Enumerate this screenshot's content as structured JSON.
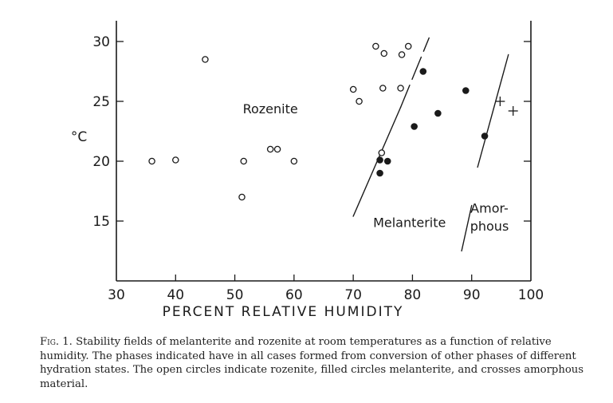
{
  "chart_data": {
    "type": "scatter",
    "title": "",
    "xlabel": "PERCENT RELATIVE HUMIDITY",
    "ylabel": "°C",
    "xlim": [
      30,
      100
    ],
    "ylim": [
      10,
      32
    ],
    "x_ticks": [
      30,
      40,
      50,
      60,
      70,
      80,
      90,
      100
    ],
    "y_ticks": [
      15,
      20,
      25,
      30
    ],
    "grid": false,
    "series": [
      {
        "marker": "open-circle",
        "points": [
          [
            36,
            20
          ],
          [
            40,
            20.1
          ],
          [
            45,
            28.5
          ],
          [
            51.2,
            17
          ],
          [
            51.5,
            20
          ],
          [
            56,
            21
          ],
          [
            57.2,
            21
          ],
          [
            60,
            20
          ],
          [
            70,
            26
          ],
          [
            71,
            25
          ],
          [
            73.8,
            29.6
          ],
          [
            74.8,
            20.7
          ],
          [
            75,
            26.1
          ],
          [
            75.2,
            29
          ],
          [
            78,
            26.1
          ],
          [
            78.2,
            28.9
          ],
          [
            79.3,
            29.6
          ]
        ]
      },
      {
        "marker": "filled-circle",
        "points": [
          [
            74.5,
            20.1
          ],
          [
            74.5,
            19
          ],
          [
            75.8,
            20
          ],
          [
            80.3,
            22.9
          ],
          [
            81.8,
            27.5
          ],
          [
            84.3,
            24
          ],
          [
            89,
            25.9
          ],
          [
            92.2,
            22.1
          ]
        ]
      },
      {
        "marker": "cross",
        "points": [
          [
            94.8,
            25
          ],
          [
            97,
            24.2
          ]
        ]
      }
    ],
    "boundary_lines": [
      {
        "style": "solid",
        "from": [
          70,
          15.4
        ],
        "to": [
          78,
          24.5
        ]
      },
      {
        "style": "dashed",
        "from": [
          78,
          24.5
        ],
        "to": [
          82.8,
          30.3
        ]
      },
      {
        "style": "solid",
        "from": [
          88.3,
          12.5
        ],
        "to": [
          90,
          16.3
        ]
      },
      {
        "style": "solid",
        "from": [
          91,
          19.5
        ],
        "to": [
          96.2,
          28.9
        ]
      }
    ],
    "annotations": [
      {
        "text": "Rozenite",
        "x": 56,
        "y": 24
      },
      {
        "text": "Melanterite",
        "x": 79.5,
        "y": 14.5
      },
      {
        "text": "Amor-",
        "x": 93,
        "y": 15.7
      },
      {
        "text": "phous",
        "x": 93,
        "y": 14.2
      }
    ]
  },
  "caption": {
    "label": "Fig. 1.",
    "text": " Stability fields of melanterite and rozenite at room temperatures as a function of relative humidity. The phases indicated have in all cases formed from conversion of other phases of different hydration states. The open circles indicate rozenite, filled circles melanterite, and crosses amorphous material."
  }
}
